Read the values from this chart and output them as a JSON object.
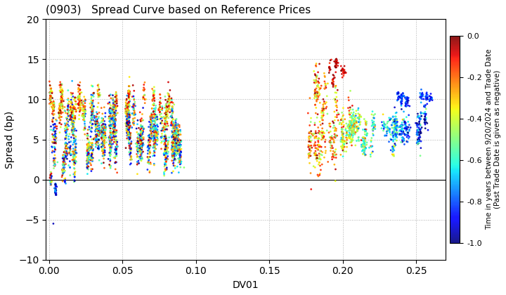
{
  "title": "(0903)   Spread Curve based on Reference Prices",
  "xlabel": "DV01",
  "ylabel": "Spread (bp)",
  "xlim": [
    -0.002,
    0.27
  ],
  "ylim": [
    -10.0,
    20.0
  ],
  "xticks": [
    0.0,
    0.05,
    0.1,
    0.15,
    0.2,
    0.25
  ],
  "yticks": [
    -10.0,
    -5.0,
    0.0,
    5.0,
    10.0,
    15.0,
    20.0
  ],
  "colorbar_label": "Time in years between 9/20/2024 and Trade Date\n(Past Trade Date is given as negative)",
  "cmap": "jet",
  "vmin": -1.0,
  "vmax": 0.0,
  "colorbar_ticks": [
    0.0,
    -0.2,
    -0.4,
    -0.6,
    -0.8,
    -1.0
  ],
  "background_color": "#ffffff",
  "grid_color": "#b0b0b0",
  "seed": 42
}
